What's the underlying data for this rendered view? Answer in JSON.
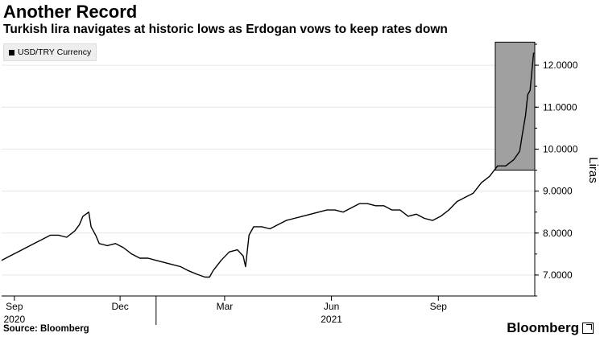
{
  "header": {
    "title": "Another Record",
    "subtitle": "Turkish lira navigates at historic lows as Erdogan vows to keep rates down"
  },
  "footer": {
    "source": "Source: Bloomberg",
    "brand": "Bloomberg"
  },
  "colors": {
    "line": "#000000",
    "highlight": "#a0a0a0",
    "grid": "#e6e6e6"
  },
  "chart_data": {
    "type": "line",
    "title": "Another Record",
    "subtitle": "Turkish lira navigates at historic lows as Erdogan vows to keep rates down",
    "ylabel": "Liras",
    "ylim": [
      6.5,
      12.5
    ],
    "y_ticks": [
      7.0,
      8.0,
      9.0,
      10.0,
      11.0,
      12.0
    ],
    "y_tick_labels": [
      "7.0000",
      "8.0000",
      "9.0000",
      "10.0000",
      "11.0000",
      "12.0000"
    ],
    "xlim": [
      "2020-08-21",
      "2021-11-23"
    ],
    "x_ticks": [
      {
        "date": "2020-09-01",
        "label": "Sep",
        "year": "2020"
      },
      {
        "date": "2020-12-01",
        "label": "Dec",
        "year": ""
      },
      {
        "date": "2021-03-01",
        "label": "Mar",
        "year": ""
      },
      {
        "date": "2021-06-01",
        "label": "Jun",
        "year": "2021"
      },
      {
        "date": "2021-09-01",
        "label": "Sep",
        "year": ""
      }
    ],
    "grid": "horizontal",
    "legend": {
      "position": "top-left",
      "entries": [
        "USD/TRY Currency"
      ]
    },
    "highlight_box": {
      "x_start": "2021-10-20",
      "x_end": "2021-11-23",
      "y_start": 9.5,
      "y_end": 12.55
    },
    "series": [
      {
        "name": "USD/TRY Currency",
        "x": [
          "2020-08-21",
          "2020-08-28",
          "2020-09-04",
          "2020-09-11",
          "2020-09-18",
          "2020-09-25",
          "2020-10-02",
          "2020-10-09",
          "2020-10-16",
          "2020-10-23",
          "2020-10-27",
          "2020-10-30",
          "2020-11-04",
          "2020-11-06",
          "2020-11-10",
          "2020-11-13",
          "2020-11-20",
          "2020-11-27",
          "2020-12-04",
          "2020-12-11",
          "2020-12-18",
          "2020-12-25",
          "2021-01-01",
          "2021-01-08",
          "2021-01-15",
          "2021-01-22",
          "2021-01-29",
          "2021-02-05",
          "2021-02-12",
          "2021-02-16",
          "2021-02-19",
          "2021-02-26",
          "2021-03-05",
          "2021-03-12",
          "2021-03-17",
          "2021-03-19",
          "2021-03-22",
          "2021-03-26",
          "2021-04-02",
          "2021-04-09",
          "2021-04-16",
          "2021-04-23",
          "2021-04-30",
          "2021-05-07",
          "2021-05-14",
          "2021-05-21",
          "2021-05-28",
          "2021-06-04",
          "2021-06-11",
          "2021-06-18",
          "2021-06-25",
          "2021-07-02",
          "2021-07-09",
          "2021-07-16",
          "2021-07-23",
          "2021-07-30",
          "2021-08-06",
          "2021-08-13",
          "2021-08-20",
          "2021-08-27",
          "2021-09-03",
          "2021-09-10",
          "2021-09-17",
          "2021-09-24",
          "2021-10-01",
          "2021-10-08",
          "2021-10-15",
          "2021-10-22",
          "2021-10-29",
          "2021-11-05",
          "2021-11-10",
          "2021-11-12",
          "2021-11-15",
          "2021-11-17",
          "2021-11-19",
          "2021-11-22"
        ],
        "values": [
          7.35,
          7.45,
          7.55,
          7.65,
          7.75,
          7.85,
          7.95,
          7.95,
          7.9,
          8.05,
          8.2,
          8.4,
          8.5,
          8.15,
          7.95,
          7.75,
          7.7,
          7.75,
          7.65,
          7.5,
          7.4,
          7.4,
          7.35,
          7.3,
          7.25,
          7.2,
          7.1,
          7.02,
          6.95,
          6.95,
          7.1,
          7.35,
          7.55,
          7.6,
          7.45,
          7.2,
          7.95,
          8.15,
          8.15,
          8.1,
          8.2,
          8.3,
          8.35,
          8.4,
          8.45,
          8.5,
          8.55,
          8.55,
          8.5,
          8.6,
          8.7,
          8.7,
          8.65,
          8.65,
          8.55,
          8.55,
          8.4,
          8.45,
          8.35,
          8.3,
          8.4,
          8.55,
          8.75,
          8.85,
          8.95,
          9.2,
          9.35,
          9.6,
          9.6,
          9.75,
          9.95,
          10.3,
          10.8,
          11.3,
          11.4,
          12.3
        ]
      }
    ]
  }
}
